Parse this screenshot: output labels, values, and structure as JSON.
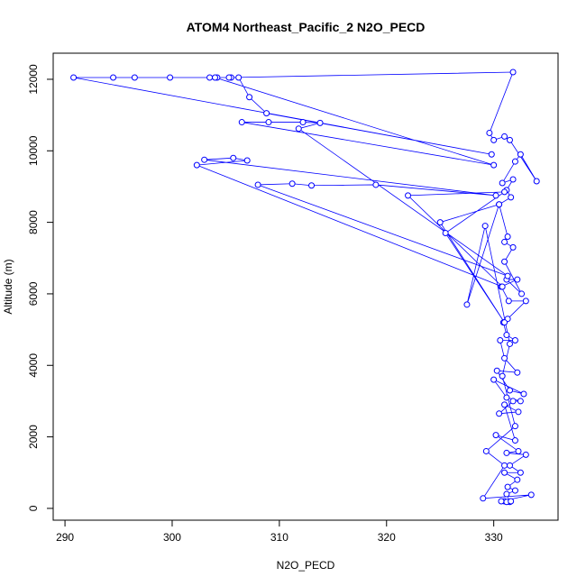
{
  "chart_data": {
    "type": "line",
    "title": "ATOM4 Northeast_Pacific_2 N2O_PECD",
    "x_label": "N2O_PECD",
    "y_label": "Altitude (m)",
    "color": "#0000ff",
    "markers": true,
    "x": [
      331.0,
      331.5,
      331.2,
      332.0,
      331.3,
      332.2,
      331.0,
      332.5,
      331.5,
      333.0,
      331.2,
      332.3,
      330.2,
      332.0,
      331.0,
      332.3,
      330.5,
      331.8,
      332.5,
      331.2,
      330.0,
      332.8,
      331.5,
      330.3,
      332.2,
      331.0,
      330.6,
      332.0,
      331.2,
      330.9,
      331.3,
      333.0,
      331.4,
      330.7,
      332.2,
      331.2,
      332.6,
      331.0,
      331.8,
      331.0,
      331.3,
      330.5,
      331.6,
      331.2,
      331.8,
      330.8,
      332.0,
      332.5,
      334.0,
      331.5,
      331.0,
      330.0,
      329.6,
      331.8,
      305.5,
      304.2,
      303.5,
      299.8,
      296.5,
      294.5,
      290.8,
      329.8,
      308.8,
      307.2,
      306.2,
      305.3,
      304.0,
      330.0,
      306.5,
      309.0,
      312.2,
      313.8,
      311.8,
      331.3,
      308.0,
      311.2,
      313.0,
      319.0,
      330.2,
      303.0,
      305.7,
      307.0,
      302.3,
      330.8,
      322.0,
      331.0,
      325.5,
      331.0,
      325.0,
      330.5,
      327.5,
      329.2,
      331.5,
      330.8,
      332.0,
      329.3,
      331.0,
      329.0,
      333.5,
      330.7,
      331.2,
      331.6
    ],
    "values": [
      200,
      180,
      400,
      500,
      600,
      800,
      1000,
      1000,
      1200,
      1500,
      1550,
      1600,
      2050,
      1900,
      2900,
      2700,
      2650,
      3000,
      3000,
      3100,
      3600,
      3200,
      3300,
      3850,
      3800,
      4200,
      4700,
      4700,
      4850,
      5200,
      5300,
      5800,
      5800,
      6200,
      6400,
      6400,
      6000,
      6900,
      7300,
      7450,
      7600,
      8500,
      8700,
      8900,
      9200,
      9100,
      9700,
      9900,
      9150,
      10300,
      10400,
      10300,
      10500,
      12200,
      12050,
      12050,
      12050,
      12050,
      12050,
      12050,
      12050,
      9900,
      11050,
      11500,
      12050,
      12050,
      12050,
      9600,
      10800,
      10800,
      10800,
      10780,
      10620,
      6500,
      9050,
      9080,
      9030,
      9050,
      8750,
      9750,
      9800,
      9730,
      9600,
      6200,
      8750,
      8850,
      7700,
      5200,
      8000,
      8500,
      5700,
      7900,
      4600,
      3700,
      2300,
      1600,
      1200,
      280,
      380,
      200,
      180,
      200
    ],
    "xlim": [
      288.9,
      336.0
    ],
    "ylim": [
      -330,
      12730
    ],
    "xticks": [
      290,
      300,
      310,
      320,
      330
    ],
    "yticks": [
      0,
      2000,
      4000,
      6000,
      8000,
      10000,
      12000
    ]
  }
}
